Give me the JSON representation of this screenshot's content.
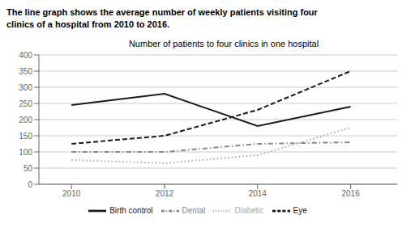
{
  "chart_data": {
    "type": "line",
    "title": "Number of patients to four clinics in one hospital",
    "annotations": [
      "The line graph shows the average number of weekly patients visiting four",
      "clinics of a hospital from 2010 to 2016."
    ],
    "x": [
      2010,
      2012,
      2014,
      2016
    ],
    "series": [
      {
        "name": "Birth control",
        "color": "#1a1a1a",
        "line_style": "solid",
        "values": [
          245,
          280,
          180,
          240
        ]
      },
      {
        "name": "Eye",
        "color": "#1a1a1a",
        "line_style": "dashed",
        "values": [
          125,
          150,
          230,
          350
        ]
      },
      {
        "name": "Diabetic",
        "color": "#aaaaaa",
        "line_style": "dotted",
        "values": [
          75,
          65,
          90,
          175
        ]
      },
      {
        "name": "Dental",
        "color": "#888888",
        "line_style": "dashdot",
        "values": [
          100,
          100,
          125,
          130
        ]
      }
    ],
    "xlim": [
      2009.3,
      2017.0
    ],
    "xticks": [
      2010,
      2012,
      2014,
      2016
    ],
    "ylim": [
      0,
      400
    ],
    "yticks": [
      0,
      50,
      100,
      150,
      200,
      250,
      300,
      350,
      400
    ],
    "grid": true,
    "legend": "bottom"
  }
}
